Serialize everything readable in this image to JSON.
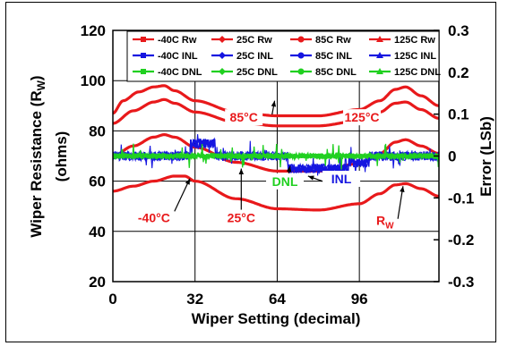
{
  "chart_data": {
    "type": "line",
    "xlabel": "Wiper Setting (decimal)",
    "ylabel_left": "Wiper Resistance (R",
    "ylabel_left_sub": "W",
    "ylabel_left_line2": "(ohms)",
    "ylabel_right": "Error (LSb)",
    "xlim": [
      0,
      127
    ],
    "ylim_left": [
      20,
      120
    ],
    "ylim_right": [
      -0.3,
      0.3
    ],
    "x_ticks": [
      "0",
      "32",
      "64",
      "96"
    ],
    "y_ticks_left": [
      "20",
      "40",
      "60",
      "80",
      "100",
      "120"
    ],
    "y_ticks_right": [
      "-0.3",
      "-0.2",
      "-0.1",
      "0",
      "0.1",
      "0.2",
      "0.3"
    ],
    "grid": true,
    "legend_position": "top",
    "colors": {
      "red": "#e8191b",
      "blue": "#1515e0",
      "green": "#20d020"
    },
    "legend": [
      {
        "label": "-40C Rw",
        "color": "#e8191b",
        "marker": "square"
      },
      {
        "label": "25C Rw",
        "color": "#e8191b",
        "marker": "diamond"
      },
      {
        "label": "85C Rw",
        "color": "#e8191b",
        "marker": "circle"
      },
      {
        "label": "125C Rw",
        "color": "#e8191b",
        "marker": "triangle"
      },
      {
        "label": "-40C INL",
        "color": "#1515e0",
        "marker": "square"
      },
      {
        "label": "25C INL",
        "color": "#1515e0",
        "marker": "diamond"
      },
      {
        "label": "85C INL",
        "color": "#1515e0",
        "marker": "circle"
      },
      {
        "label": "125C INL",
        "color": "#1515e0",
        "marker": "triangle"
      },
      {
        "label": "-40C DNL",
        "color": "#20d020",
        "marker": "square"
      },
      {
        "label": "25C DNL",
        "color": "#20d020",
        "marker": "diamond"
      },
      {
        "label": "85C DNL",
        "color": "#20d020",
        "marker": "circle"
      },
      {
        "label": "125C DNL",
        "color": "#20d020",
        "marker": "triangle"
      }
    ],
    "rw_series": [
      {
        "temp": "125C",
        "x": [
          0,
          4,
          10,
          16,
          20,
          24,
          32,
          48,
          64,
          80,
          96,
          104,
          110,
          114,
          120,
          127
        ],
        "y": [
          87,
          92,
          95.5,
          97.5,
          98,
          96,
          92,
          87.5,
          86,
          86,
          88.5,
          92,
          96.5,
          97.5,
          94,
          90
        ]
      },
      {
        "temp": "85C",
        "x": [
          0,
          8,
          16,
          20,
          24,
          32,
          48,
          64,
          80,
          96,
          104,
          110,
          114,
          120,
          127
        ],
        "y": [
          83,
          88,
          91.5,
          92.5,
          91,
          87.5,
          83.5,
          82,
          82,
          84,
          87.5,
          91,
          91.5,
          88.5,
          85
        ]
      },
      {
        "temp": "25C",
        "x": [
          0,
          8,
          16,
          20,
          24,
          32,
          48,
          64,
          80,
          96,
          104,
          110,
          114,
          120,
          127
        ],
        "y": [
          70,
          74,
          77.5,
          78.5,
          77.5,
          73.5,
          67.5,
          64,
          64,
          67,
          71,
          75.5,
          76.5,
          74,
          71
        ]
      },
      {
        "temp": "-40C",
        "x": [
          0,
          8,
          16,
          24,
          28,
          32,
          48,
          64,
          80,
          96,
          104,
          110,
          114,
          120,
          127
        ],
        "y": [
          56,
          58,
          60,
          62,
          62,
          60,
          53,
          49,
          48.5,
          51,
          55,
          58.5,
          59,
          57,
          54
        ]
      }
    ],
    "annotations": [
      {
        "text": "85°C",
        "color": "#e8191b",
        "x": 51,
        "y": 84
      },
      {
        "text": "125°C",
        "color": "#e8191b",
        "x": 97,
        "y": 84
      },
      {
        "text": "-40°C",
        "color": "#e8191b",
        "x": 16,
        "y": 44
      },
      {
        "text": "25°C",
        "color": "#e8191b",
        "x": 50,
        "y": 44
      },
      {
        "text": "DNL",
        "color": "#20d020",
        "x": 67,
        "y": 58.5
      },
      {
        "text": "INL",
        "color": "#1515e0",
        "x": 89,
        "y": 59.5
      },
      {
        "text": "R",
        "sub": "W",
        "color": "#e8191b",
        "x": 106,
        "y": 43
      }
    ]
  }
}
